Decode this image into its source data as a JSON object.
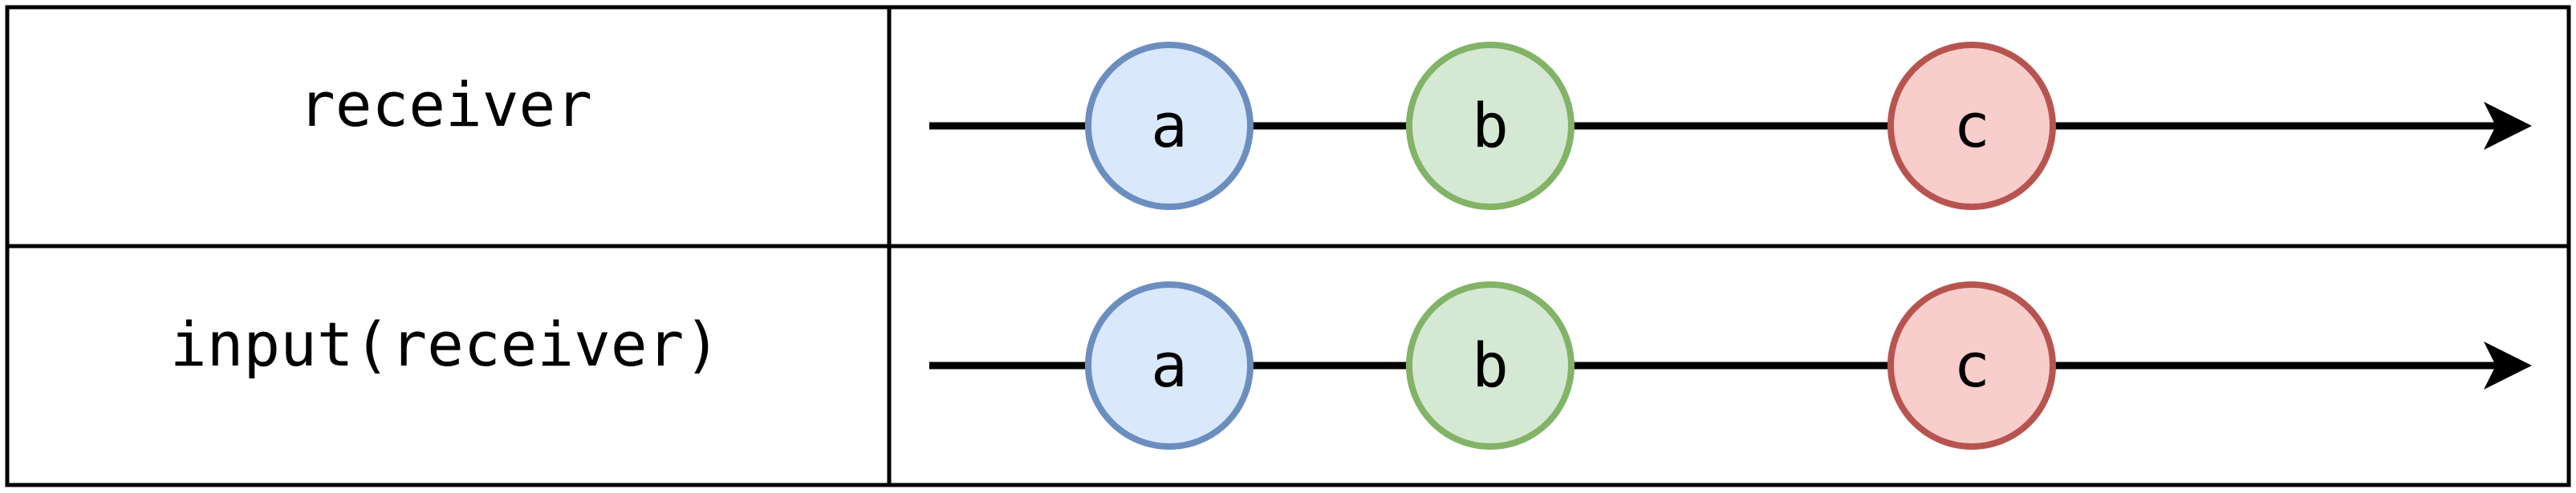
{
  "rows": [
    {
      "label": "receiver",
      "events": [
        {
          "value": "a",
          "fill": "#dae8fc",
          "stroke": "#6c8ebf"
        },
        {
          "value": "b",
          "fill": "#d5e8d4",
          "stroke": "#82b366"
        },
        {
          "value": "c",
          "fill": "#f8cecc",
          "stroke": "#b85450"
        }
      ]
    },
    {
      "label": "input(receiver)",
      "events": [
        {
          "value": "a",
          "fill": "#dae8fc",
          "stroke": "#6c8ebf"
        },
        {
          "value": "b",
          "fill": "#d5e8d4",
          "stroke": "#82b366"
        },
        {
          "value": "c",
          "fill": "#f8cecc",
          "stroke": "#b85450"
        }
      ]
    }
  ]
}
